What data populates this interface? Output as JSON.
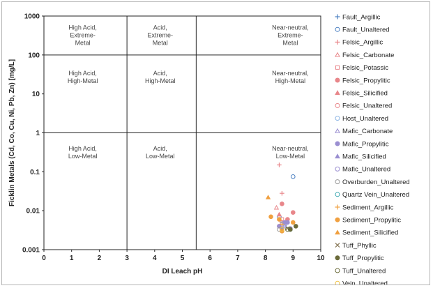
{
  "chart_data": {
    "type": "scatter",
    "xlabel": "DI Leach pH",
    "ylabel": "Ficklin Metals (Cd, Co, Cu, Ni, Pb, Zn) [mg/L]",
    "xlim": [
      0,
      10
    ],
    "ylim": [
      0.001,
      1000
    ],
    "yscale": "log",
    "x_ticks": [
      "0",
      "1",
      "2",
      "3",
      "4",
      "5",
      "6",
      "7",
      "8",
      "9",
      "10"
    ],
    "y_ticks": [
      "0.001",
      "0.01",
      "0.1",
      "1",
      "10",
      "100",
      "1000"
    ],
    "divider_x": [
      3,
      5.5
    ],
    "divider_y": [
      1,
      100
    ],
    "regions": [
      {
        "lines": [
          "High Acid,",
          "Extreme-",
          "Metal"
        ],
        "x": 1.4,
        "y": 450
      },
      {
        "lines": [
          "Acid,",
          "Extreme-",
          "Metal"
        ],
        "x": 4.2,
        "y": 450
      },
      {
        "lines": [
          "Near-neutral,",
          "Extreme-",
          "Metal"
        ],
        "x": 8.9,
        "y": 450
      },
      {
        "lines": [
          "High Acid,",
          "High-Metal"
        ],
        "x": 1.4,
        "y": 30
      },
      {
        "lines": [
          "Acid,",
          "High-Metal"
        ],
        "x": 4.2,
        "y": 30
      },
      {
        "lines": [
          "Near-neutral,",
          "High-Metal"
        ],
        "x": 8.9,
        "y": 30
      },
      {
        "lines": [
          "High Acid,",
          "Low-Metal"
        ],
        "x": 1.4,
        "y": 0.35
      },
      {
        "lines": [
          "Acid,",
          "Low-Metal"
        ],
        "x": 4.2,
        "y": 0.35
      },
      {
        "lines": [
          "Near-neutral,",
          "Low-Metal"
        ],
        "x": 8.9,
        "y": 0.35
      }
    ],
    "series": [
      {
        "name": "Fault_Argillic",
        "marker": "plus",
        "color": "#4a7fc1",
        "points": [
          [
            8.6,
            0.005
          ]
        ]
      },
      {
        "name": "Fault_Unaltered",
        "marker": "circle-open",
        "color": "#4a7fc1",
        "points": [
          [
            9.0,
            0.075
          ],
          [
            8.5,
            0.007
          ]
        ]
      },
      {
        "name": "Felsic_Argillic",
        "marker": "plus",
        "color": "#e8868a",
        "points": [
          [
            8.5,
            0.15
          ],
          [
            8.6,
            0.028
          ]
        ]
      },
      {
        "name": "Felsic_Carbonate",
        "marker": "triangle-open",
        "color": "#e8868a",
        "points": [
          [
            8.4,
            0.012
          ]
        ]
      },
      {
        "name": "Felsic_Potassic",
        "marker": "square-open",
        "color": "#e8868a",
        "points": [
          [
            8.6,
            0.006
          ]
        ]
      },
      {
        "name": "Felsic_Propylitic",
        "marker": "circle",
        "color": "#e8868a",
        "points": [
          [
            8.6,
            0.015
          ],
          [
            8.8,
            0.006
          ],
          [
            9.0,
            0.009
          ],
          [
            8.5,
            0.004
          ]
        ]
      },
      {
        "name": "Felsic_Silicified",
        "marker": "triangle",
        "color": "#e8868a",
        "points": [
          [
            8.5,
            0.008
          ]
        ]
      },
      {
        "name": "Felsic_Unaltered",
        "marker": "circle-open",
        "color": "#e8868a",
        "points": [
          [
            8.6,
            0.005
          ]
        ]
      },
      {
        "name": "Host_Unaltered",
        "marker": "circle-open",
        "color": "#8fb7e6",
        "points": [
          [
            8.7,
            0.004
          ]
        ]
      },
      {
        "name": "Mafic_Carbonate",
        "marker": "triangle-open",
        "color": "#9b8fd1",
        "points": [
          [
            8.7,
            0.004
          ]
        ]
      },
      {
        "name": "Mafic_Propylitic",
        "marker": "circle",
        "color": "#9b8fd1",
        "points": [
          [
            8.7,
            0.005
          ],
          [
            8.8,
            0.005
          ],
          [
            8.9,
            0.0035
          ],
          [
            8.6,
            0.0033
          ],
          [
            8.5,
            0.004
          ]
        ]
      },
      {
        "name": "Mafic_Silicified",
        "marker": "triangle",
        "color": "#9b8fd1",
        "points": [
          [
            8.6,
            0.0035
          ]
        ]
      },
      {
        "name": "Mafic_Unaltered",
        "marker": "circle-open",
        "color": "#9b8fd1",
        "points": [
          [
            8.7,
            0.0045
          ]
        ]
      },
      {
        "name": "Overburden_Unaltered",
        "marker": "circle-open",
        "color": "#9a9a9a",
        "points": [
          [
            8.5,
            0.0033
          ]
        ]
      },
      {
        "name": "Quartz Vein_Unaltered",
        "marker": "circle-open",
        "color": "#3aa7b0",
        "points": [
          [
            8.9,
            0.0033
          ]
        ]
      },
      {
        "name": "Sediment_Argillic",
        "marker": "plus",
        "color": "#f0a040",
        "points": [
          [
            8.6,
            0.0045
          ]
        ]
      },
      {
        "name": "Sediment_Propylitic",
        "marker": "circle",
        "color": "#f0a040",
        "points": [
          [
            8.2,
            0.007
          ],
          [
            8.6,
            0.003
          ],
          [
            9.0,
            0.005
          ],
          [
            8.5,
            0.006
          ]
        ]
      },
      {
        "name": "Sediment_Silicified",
        "marker": "triangle",
        "color": "#f0a040",
        "points": [
          [
            8.1,
            0.022
          ]
        ]
      },
      {
        "name": "Tuff_Phyllic",
        "marker": "x",
        "color": "#8a7a5a",
        "points": [
          [
            8.8,
            0.0035
          ]
        ]
      },
      {
        "name": "Tuff_Propylitic",
        "marker": "circle",
        "color": "#6b6b3a",
        "points": [
          [
            9.1,
            0.004
          ],
          [
            8.9,
            0.0033
          ]
        ]
      },
      {
        "name": "Tuff_Unaltered",
        "marker": "circle-open",
        "color": "#6b6b3a",
        "points": [
          [
            8.8,
            0.0033
          ]
        ]
      },
      {
        "name": "Vein_Unaltered",
        "marker": "circle-open",
        "color": "#f0c040",
        "points": [
          [
            8.6,
            0.0033
          ]
        ]
      }
    ]
  }
}
